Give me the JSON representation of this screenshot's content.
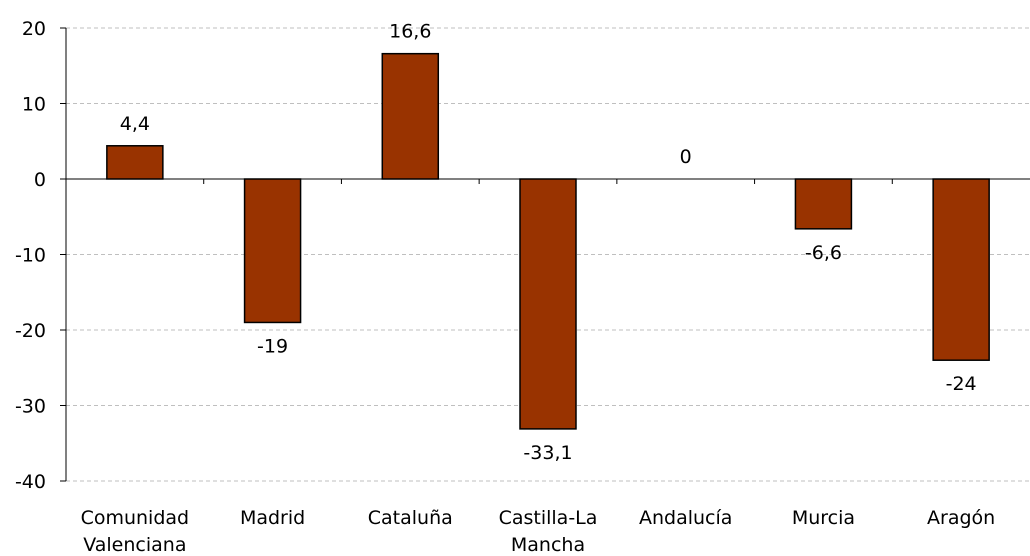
{
  "chart_data": {
    "type": "bar",
    "categories": [
      [
        "Comunidad",
        "Valenciana"
      ],
      [
        "Madrid"
      ],
      [
        "Cataluña"
      ],
      [
        "Castilla-La",
        "Mancha"
      ],
      [
        "Andalucía"
      ],
      [
        "Murcia"
      ],
      [
        "Aragón"
      ]
    ],
    "values": [
      4.4,
      -19,
      16.6,
      -33.1,
      0,
      -6.6,
      -24
    ],
    "data_labels": [
      "4,4",
      "-19",
      "16,6",
      "-33,1",
      "0",
      "-6,6",
      "-24"
    ],
    "ylim": [
      -40,
      20
    ],
    "yticks": [
      20,
      10,
      0,
      -10,
      -20,
      -30,
      -40
    ],
    "ytick_labels": [
      "20",
      "10",
      "0",
      "-10",
      "-20",
      "-30",
      "-40"
    ],
    "grid": "horizontal dashed",
    "colors": {
      "bar_fill": "#993300",
      "bar_stroke": "#000000",
      "grid": "#bfbfbf",
      "axis": "#000000"
    }
  }
}
